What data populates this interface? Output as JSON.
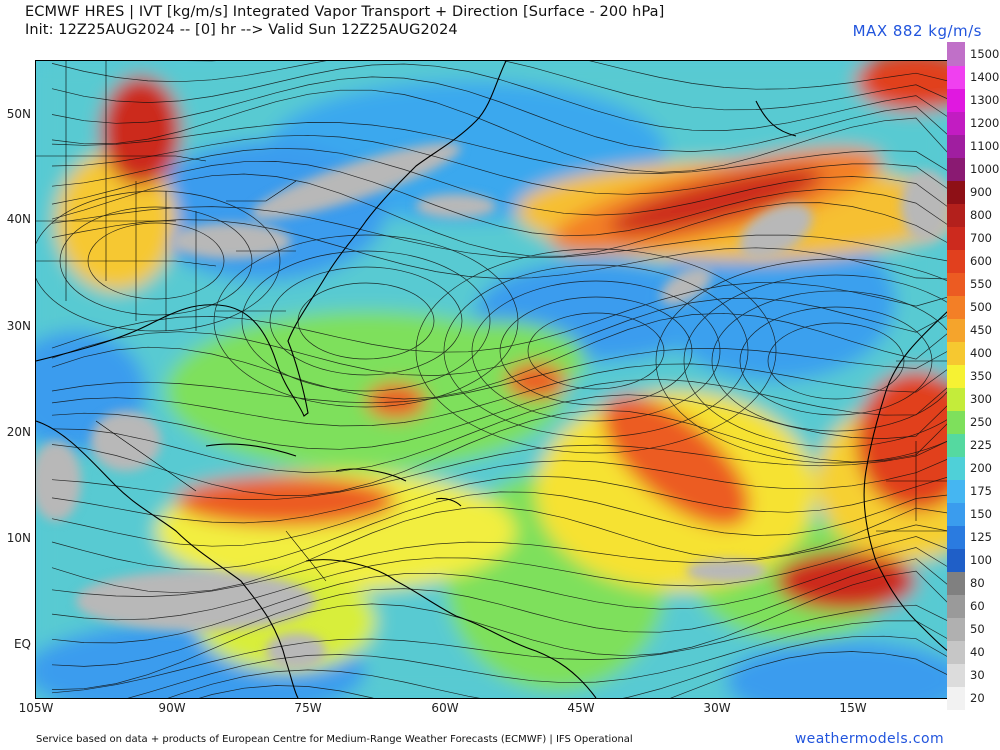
{
  "header": {
    "title_line1": "ECMWF HRES | IVT [kg/m/s] Integrated Vapor Transport + Direction [Surface - 200 hPa]",
    "title_line2": "Init: 12Z25AUG2024 -- [0] hr --> Valid Sun 12Z25AUG2024",
    "max_label": "MAX 882 kg/m/s"
  },
  "map": {
    "lat_labels": [
      "50N",
      "40N",
      "30N",
      "20N",
      "10N",
      "EQ"
    ],
    "lon_labels": [
      "105W",
      "90W",
      "75W",
      "60W",
      "45W",
      "30W",
      "15W"
    ]
  },
  "colorbar": {
    "levels": [
      "20",
      "30",
      "40",
      "50",
      "60",
      "80",
      "100",
      "125",
      "150",
      "175",
      "200",
      "225",
      "250",
      "300",
      "350",
      "400",
      "450",
      "500",
      "550",
      "600",
      "700",
      "800",
      "900",
      "1000",
      "1100",
      "1200",
      "1300",
      "1400",
      "1500"
    ],
    "colors": [
      "#f2f2f2",
      "#dcdcdc",
      "#c6c6c6",
      "#b0b0b0",
      "#9a9a9a",
      "#808080",
      "#1f5fc8",
      "#2a7be0",
      "#3a9cee",
      "#45b6f2",
      "#4fd0d8",
      "#55d9a0",
      "#7ee05c",
      "#c4ec3a",
      "#f6f233",
      "#f6c830",
      "#f5a42c",
      "#f37f26",
      "#ec5b22",
      "#e1401e",
      "#cc2a1e",
      "#b3201c",
      "#8e1016",
      "#8a1a72",
      "#a01ea0",
      "#c21cc2",
      "#e018e0",
      "#f040f0",
      "#c070c8"
    ]
  },
  "footer": {
    "credit": "Service based on data + products of European Centre for Medium-Range Weather Forecasts (ECMWF) | IFS Operational",
    "site": "weathermodels.com"
  }
}
